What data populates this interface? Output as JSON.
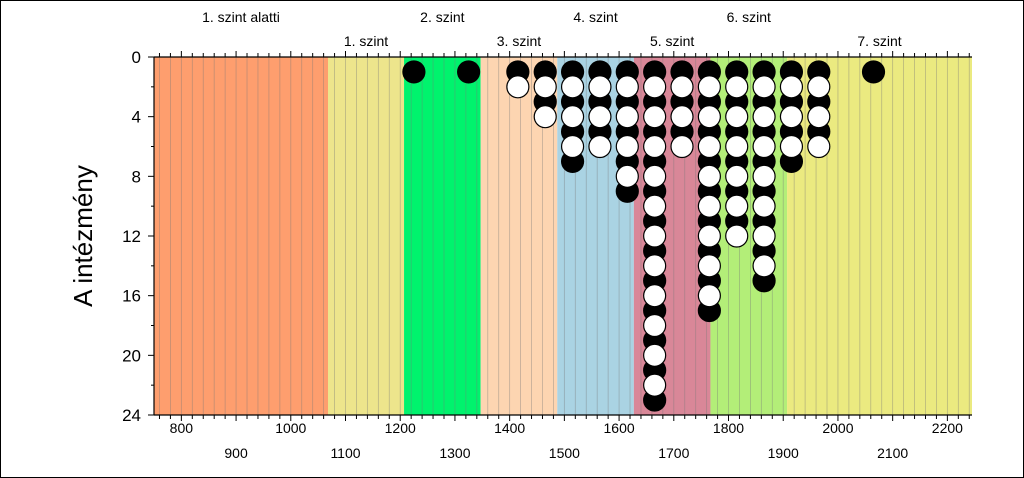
{
  "chart_data": {
    "type": "scatter",
    "title": "",
    "ylabel": "A intézmény",
    "xlabel": "",
    "xlim": [
      750,
      2245
    ],
    "ylim": [
      0,
      24
    ],
    "y_inverted": true,
    "y_ticks": [
      0,
      4,
      8,
      12,
      16,
      20,
      24
    ],
    "x_ticks_top_row": [
      800,
      1000,
      1200,
      1400,
      1600,
      1800,
      2000,
      2200
    ],
    "x_ticks_bottom_row": [
      900,
      1100,
      1300,
      1500,
      1700,
      1900,
      2100
    ],
    "grid": "vertical minor lines every 20 points",
    "levels": [
      {
        "name": "1. szint alatti",
        "from": 750,
        "to": 1068,
        "color": "#fe9e6e",
        "label_row": "top"
      },
      {
        "name": "1. szint",
        "from": 1068,
        "to": 1207,
        "color": "#ede58c",
        "label_row": "bottom"
      },
      {
        "name": "2. szint",
        "from": 1207,
        "to": 1347,
        "color": "#00f36d",
        "label_row": "top"
      },
      {
        "name": "3. szint",
        "from": 1347,
        "to": 1487,
        "color": "#fdd5b1",
        "label_row": "bottom"
      },
      {
        "name": "4. szint",
        "from": 1487,
        "to": 1627,
        "color": "#aad3e3",
        "label_row": "top"
      },
      {
        "name": "5. szint",
        "from": 1627,
        "to": 1767,
        "color": "#d98798",
        "label_row": "bottom"
      },
      {
        "name": "6. szint",
        "from": 1767,
        "to": 1907,
        "color": "#b3ee78",
        "label_row": "top"
      },
      {
        "name": "7. szint",
        "from": 1907,
        "to": 2245,
        "color": "#ebea80",
        "label_row": "bottom"
      }
    ],
    "series": [
      {
        "fill": "#000000",
        "points": [
          [
            1225,
            1
          ],
          [
            1325,
            1
          ],
          [
            1415,
            1
          ],
          [
            1465,
            1
          ],
          [
            1465,
            3
          ],
          [
            1515,
            1
          ],
          [
            1515,
            3
          ],
          [
            1515,
            5
          ],
          [
            1515,
            7
          ],
          [
            1565,
            1
          ],
          [
            1565,
            3
          ],
          [
            1565,
            5
          ],
          [
            1615,
            1
          ],
          [
            1615,
            3
          ],
          [
            1615,
            5
          ],
          [
            1615,
            7
          ],
          [
            1615,
            9
          ],
          [
            1665,
            1
          ],
          [
            1665,
            3
          ],
          [
            1665,
            5
          ],
          [
            1665,
            7
          ],
          [
            1665,
            9
          ],
          [
            1665,
            11
          ],
          [
            1665,
            13
          ],
          [
            1665,
            15
          ],
          [
            1665,
            17
          ],
          [
            1665,
            19
          ],
          [
            1665,
            21
          ],
          [
            1665,
            23
          ],
          [
            1715,
            1
          ],
          [
            1715,
            3
          ],
          [
            1715,
            5
          ],
          [
            1765,
            1
          ],
          [
            1765,
            3
          ],
          [
            1765,
            5
          ],
          [
            1765,
            7
          ],
          [
            1765,
            9
          ],
          [
            1765,
            11
          ],
          [
            1765,
            13
          ],
          [
            1765,
            15
          ],
          [
            1765,
            17
          ],
          [
            1815,
            1
          ],
          [
            1815,
            3
          ],
          [
            1815,
            5
          ],
          [
            1815,
            7
          ],
          [
            1815,
            9
          ],
          [
            1815,
            11
          ],
          [
            1865,
            1
          ],
          [
            1865,
            3
          ],
          [
            1865,
            5
          ],
          [
            1865,
            7
          ],
          [
            1865,
            9
          ],
          [
            1865,
            11
          ],
          [
            1865,
            13
          ],
          [
            1865,
            15
          ],
          [
            1915,
            1
          ],
          [
            1915,
            3
          ],
          [
            1915,
            5
          ],
          [
            1915,
            7
          ],
          [
            1965,
            1
          ],
          [
            1965,
            3
          ],
          [
            1965,
            5
          ],
          [
            2065,
            1
          ]
        ]
      },
      {
        "fill": "#ffffff",
        "points": [
          [
            1415,
            2
          ],
          [
            1465,
            2
          ],
          [
            1465,
            4
          ],
          [
            1515,
            2
          ],
          [
            1515,
            4
          ],
          [
            1515,
            6
          ],
          [
            1565,
            2
          ],
          [
            1565,
            4
          ],
          [
            1565,
            6
          ],
          [
            1615,
            2
          ],
          [
            1615,
            4
          ],
          [
            1615,
            6
          ],
          [
            1615,
            8
          ],
          [
            1665,
            2
          ],
          [
            1665,
            4
          ],
          [
            1665,
            6
          ],
          [
            1665,
            8
          ],
          [
            1665,
            10
          ],
          [
            1665,
            12
          ],
          [
            1665,
            14
          ],
          [
            1665,
            16
          ],
          [
            1665,
            18
          ],
          [
            1665,
            20
          ],
          [
            1665,
            22
          ],
          [
            1715,
            2
          ],
          [
            1715,
            4
          ],
          [
            1715,
            6
          ],
          [
            1765,
            2
          ],
          [
            1765,
            4
          ],
          [
            1765,
            6
          ],
          [
            1765,
            8
          ],
          [
            1765,
            10
          ],
          [
            1765,
            12
          ],
          [
            1765,
            14
          ],
          [
            1765,
            16
          ],
          [
            1815,
            2
          ],
          [
            1815,
            4
          ],
          [
            1815,
            6
          ],
          [
            1815,
            8
          ],
          [
            1815,
            10
          ],
          [
            1815,
            12
          ],
          [
            1865,
            2
          ],
          [
            1865,
            4
          ],
          [
            1865,
            6
          ],
          [
            1865,
            8
          ],
          [
            1865,
            10
          ],
          [
            1865,
            12
          ],
          [
            1865,
            14
          ],
          [
            1915,
            2
          ],
          [
            1915,
            4
          ],
          [
            1915,
            6
          ],
          [
            1965,
            2
          ],
          [
            1965,
            4
          ],
          [
            1965,
            6
          ]
        ]
      }
    ]
  }
}
